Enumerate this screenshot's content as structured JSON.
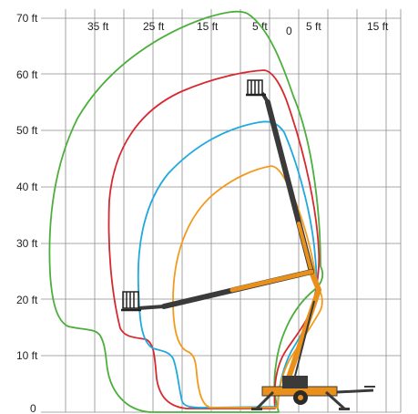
{
  "diagram": {
    "y_axis_labels": [
      "70 ft",
      "60 ft",
      "50 ft",
      "40 ft",
      "30 ft",
      "20 ft",
      "10 ft",
      "0"
    ],
    "x_axis_labels": [
      "35 ft",
      "25 ft",
      "15 ft",
      "5 ft",
      "0",
      "5 ft",
      "15 ft"
    ],
    "colors": {
      "grid": "#8c8c8c",
      "green": "#4caf3c",
      "red": "#d7282f",
      "cyan": "#1fa9df",
      "orange": "#f39a1d",
      "boom_dark": "#3a3a3a",
      "boom_orange": "#e8901a"
    },
    "envelope_order": [
      "green",
      "red",
      "cyan",
      "orange"
    ],
    "machine_icon": "articulating-boom-lift-icon"
  }
}
